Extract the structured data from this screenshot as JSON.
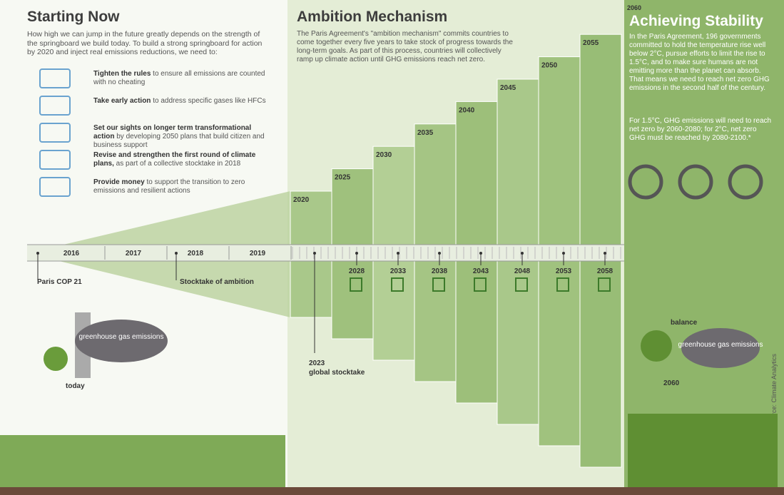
{
  "starting_now": {
    "title": "Starting Now",
    "intro": "How high we can jump in the future greatly depends on the strength of the springboard we build today. To build a strong springboard for action by 2020 and inject real emissions reductions, we need to:",
    "items": [
      {
        "bold": "Tighten the rules",
        "text": " to ensure all emissions are counted with no cheating"
      },
      {
        "bold": "Take early action",
        "text": " to address specific gases like HFCs"
      },
      {
        "bold": "Set our sights on longer term transformational action",
        "text": " by developing 2050 plans that build citizen and business support"
      },
      {
        "bold": "Revise and strengthen the first round of climate plans,",
        "text": " as part of a collective stocktake in 2018"
      },
      {
        "bold": "Provide money",
        "text": " to support the transition to zero emissions and resilient actions"
      }
    ],
    "cloud": "greenhouse gas emissions",
    "today": "today"
  },
  "timeline": {
    "years": [
      "2016",
      "2017",
      "2018",
      "2019"
    ],
    "paris": "Paris COP 21",
    "stocktake": "Stocktake of ambition"
  },
  "ambition": {
    "title": "Ambition Mechanism",
    "text": "The Paris Agreement's \"ambition mechanism\" commits countries to come together every five years to take stock of progress towards the long-term goals. As part of this process, countries will collectively ramp up climate action until GHG emissions reach net zero.",
    "steps": [
      "2020",
      "2025",
      "2030",
      "2035",
      "2040",
      "2045",
      "2050",
      "2055"
    ],
    "stocktakes": [
      "2028",
      "2033",
      "2038",
      "2043",
      "2048",
      "2053",
      "2058"
    ],
    "global_year": "2023",
    "global_label": "global stocktake"
  },
  "stability": {
    "year": "2060",
    "title": "Achieving Stability",
    "text1": "In the Paris Agreement, 196 governments committed to hold the temperature rise well below 2°C, pursue efforts to limit the rise to 1.5°C, and to make sure humans are not emitting more than the planet can absorb. That means we need to reach net zero GHG emissions in the second half of the century.",
    "text2": "For 1.5°C, GHG emissions will need to reach net zero by 2060-2080; for 2°C, net zero GHG must be reached by 2080-2100.*",
    "balance": "balance",
    "cloud": "greenhouse gas emissions",
    "cloud_year": "2060",
    "source": "*source: Climate Analytics"
  }
}
